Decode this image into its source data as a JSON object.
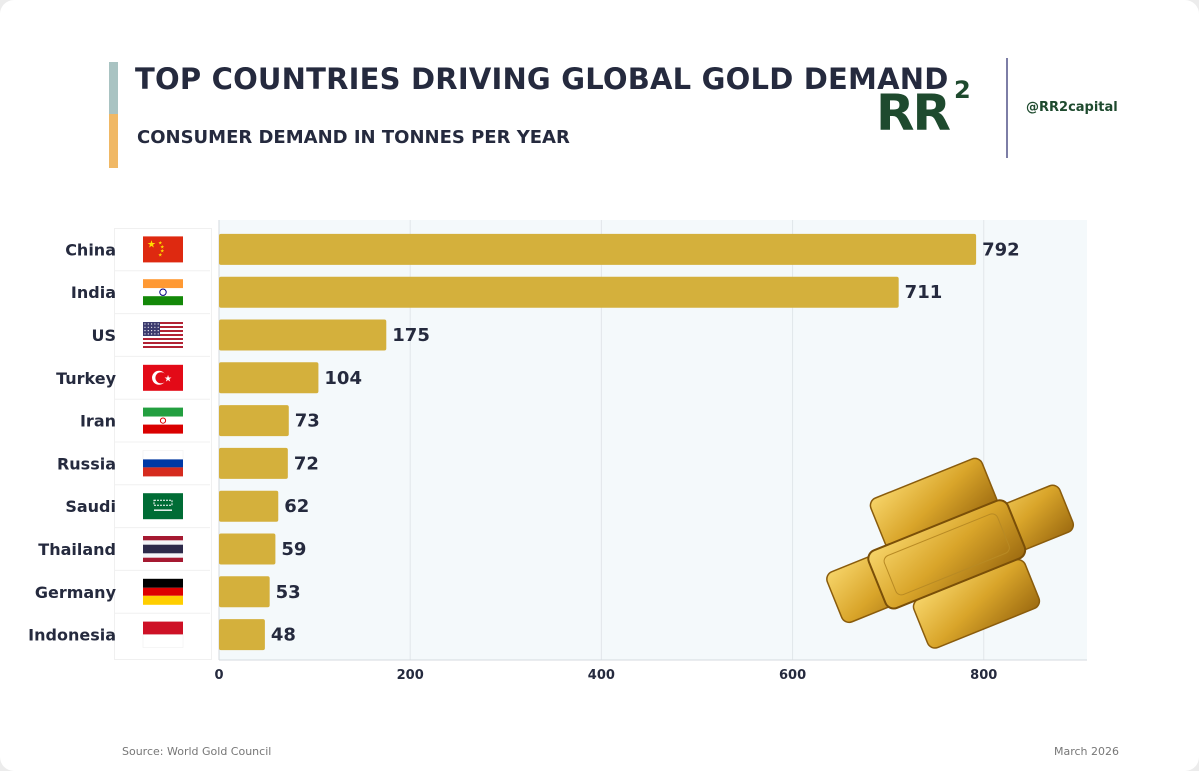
{
  "header": {
    "title": "TOP COUNTRIES DRIVING GLOBAL GOLD DEMAND",
    "subtitle": "CONSUMER DEMAND IN TONNES PER YEAR"
  },
  "brand": {
    "logo_text": "RR",
    "logo_superscript": "2",
    "handle": "@RR2capital",
    "logo_color": "#1e4a2e"
  },
  "footer": {
    "source": "Source: World Gold Council",
    "date": "March 2026"
  },
  "colors": {
    "bar": "#d4b03c",
    "text": "#252a3e",
    "plot_bg": "#f4f9fb"
  },
  "chart_data": {
    "type": "bar",
    "orientation": "horizontal",
    "title": "TOP COUNTRIES DRIVING GLOBAL GOLD DEMAND",
    "subtitle": "CONSUMER DEMAND IN TONNES PER YEAR",
    "categories": [
      "China",
      "India",
      "US",
      "Turkey",
      "Iran",
      "Russia",
      "Saudi",
      "Thailand",
      "Germany",
      "Indonesia"
    ],
    "values": [
      792,
      711,
      175,
      104,
      73,
      72,
      62,
      59,
      53,
      48
    ],
    "xlabel": "",
    "ylabel": "",
    "xlim": [
      0,
      908
    ],
    "xticks": [
      0,
      200,
      400,
      600,
      800
    ],
    "grid": true,
    "data_labels": true,
    "flags": [
      "flag-china",
      "flag-india",
      "flag-us",
      "flag-turkey",
      "flag-iran",
      "flag-russia",
      "flag-saudi",
      "flag-thailand",
      "flag-germany",
      "flag-indonesia"
    ]
  }
}
